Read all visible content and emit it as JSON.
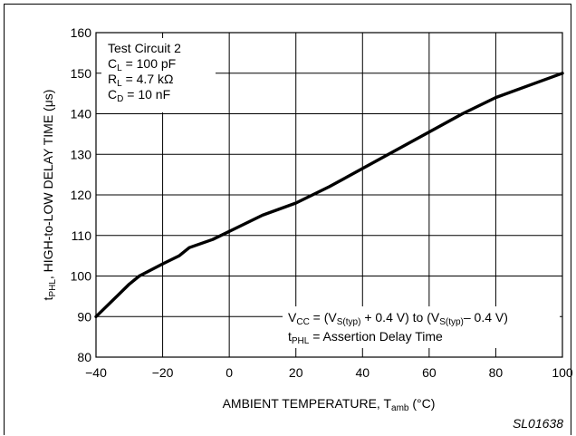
{
  "chart_data": {
    "type": "line",
    "title": "",
    "xlabel": {
      "main": "AMBIENT TEMPERATURE, T",
      "sub": "amb",
      "unit": " (°C)"
    },
    "ylabel": {
      "sym": "t",
      "sub": "PHL",
      "main": ", HIGH-to-LOW DELAY TIME (μs)"
    },
    "xlim": [
      -40,
      100
    ],
    "ylim": [
      80,
      160
    ],
    "x_ticks": [
      -40,
      -20,
      0,
      20,
      40,
      60,
      80,
      100
    ],
    "y_ticks": [
      80,
      90,
      100,
      110,
      120,
      130,
      140,
      150,
      160
    ],
    "x_tick_labels": [
      "−40",
      "−20",
      "0",
      "20",
      "40",
      "60",
      "80",
      "100"
    ],
    "y_tick_labels": [
      "80",
      "90",
      "100",
      "110",
      "120",
      "130",
      "140",
      "150",
      "160"
    ],
    "grid": true,
    "series": [
      {
        "x": [
          -40,
          -35,
          -30,
          -27,
          -20,
          -15,
          -12,
          -5,
          0,
          10,
          20,
          30,
          40,
          50,
          60,
          70,
          80,
          90,
          100
        ],
        "y": [
          90,
          94,
          98,
          100,
          103,
          105,
          107,
          109,
          111,
          115,
          118,
          122,
          126.5,
          131,
          135.5,
          140,
          144,
          147,
          150
        ]
      }
    ],
    "annotations": {
      "conditions": [
        {
          "main": "Test Circuit 2"
        },
        {
          "sym": "C",
          "sub": "L",
          "rest": " = 100 pF"
        },
        {
          "sym": "R",
          "sub": "L",
          "rest": " = 4.7 kΩ"
        },
        {
          "sym": "C",
          "sub": "D",
          "rest": " = 10 nF"
        }
      ],
      "vcc": {
        "p1": "V",
        "s1": "CC",
        "p2": " = (V",
        "s2": "S(typ)",
        "p3": " + 0.4 V) to (V",
        "s3": "S(typ)",
        "p4": "– 0.4 V)"
      },
      "tphl": {
        "sym": "t",
        "sub": "PHL",
        "rest": " = Assertion Delay Time"
      }
    },
    "figure_id": "SL01638"
  }
}
